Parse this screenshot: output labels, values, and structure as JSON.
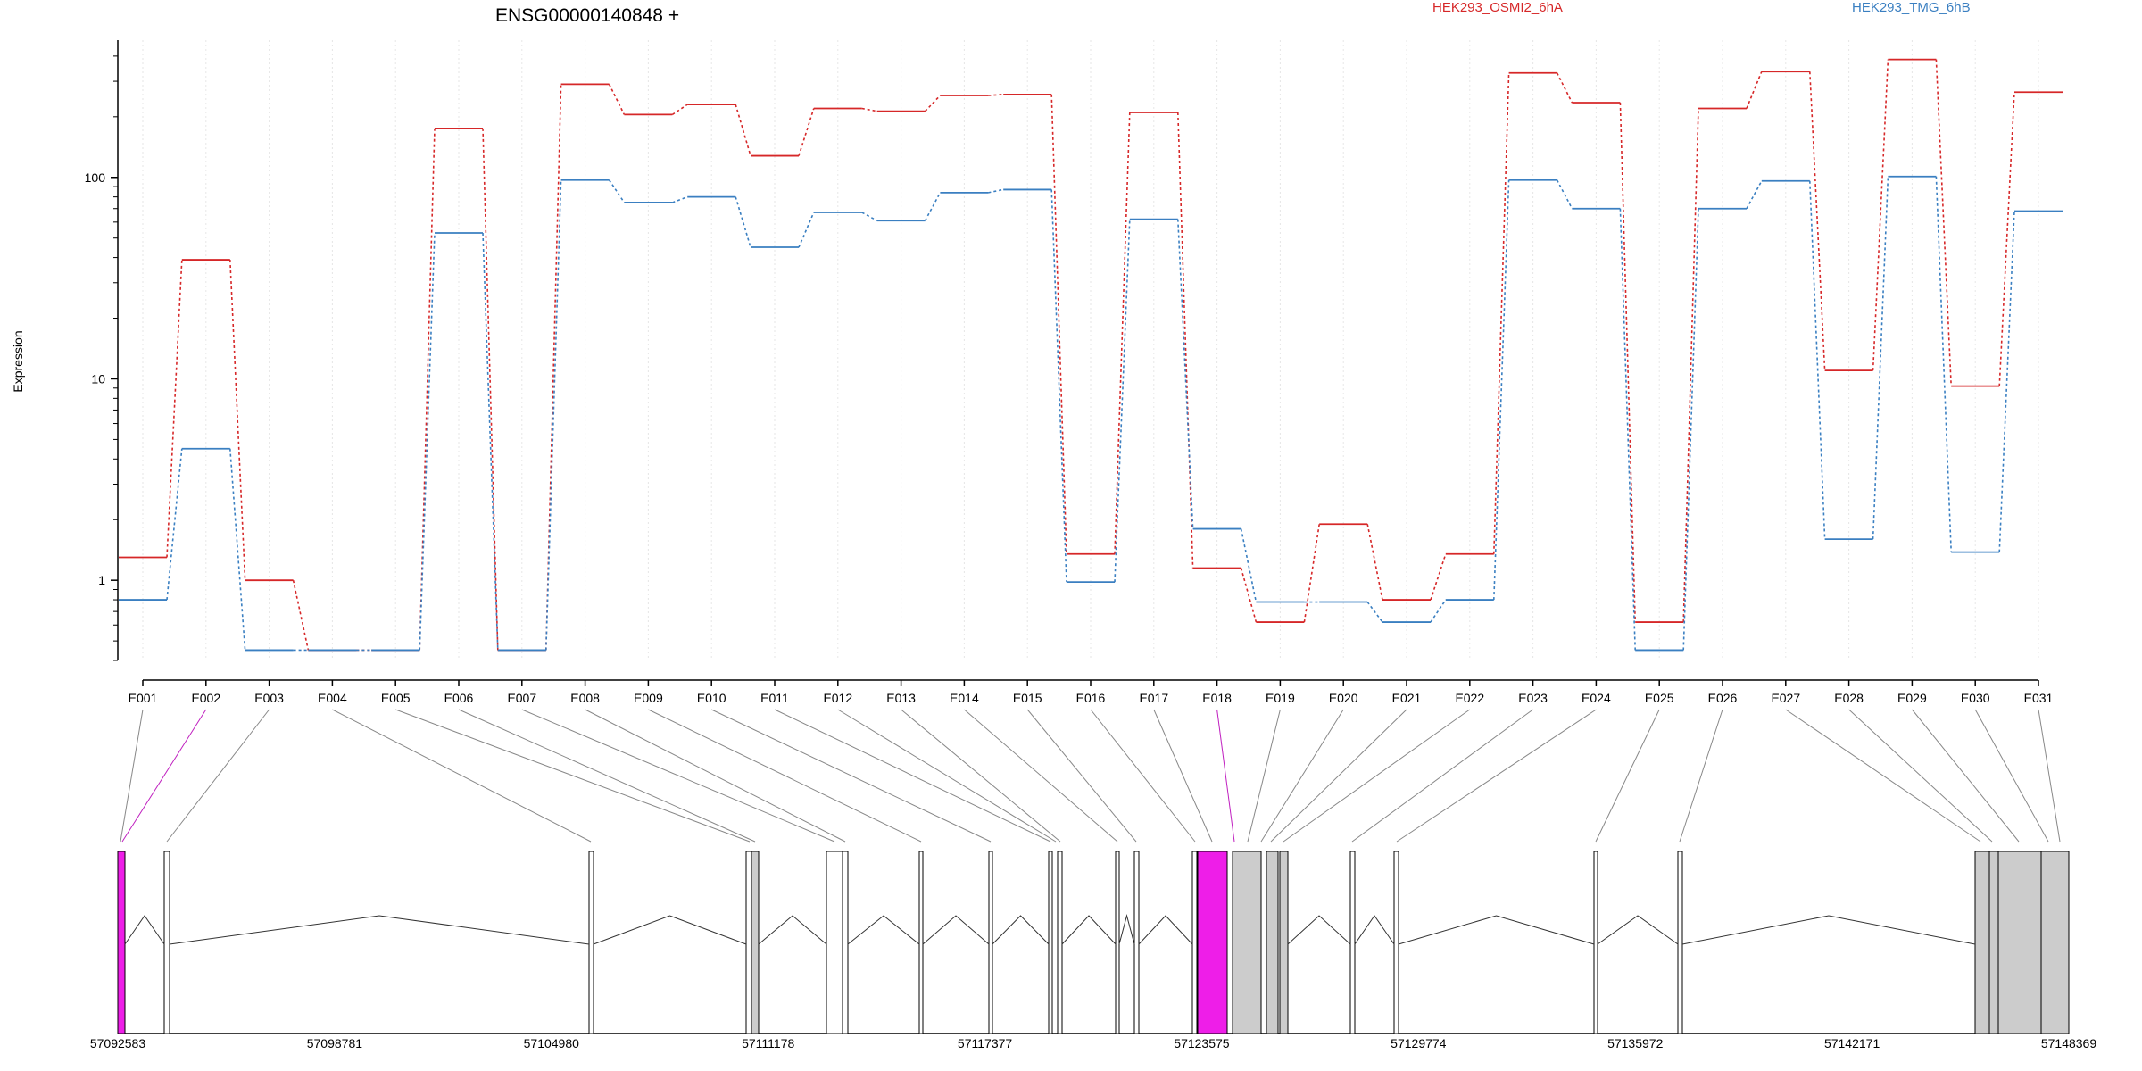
{
  "chart_data": [
    {
      "type": "line",
      "title": "ENSG00000140848 +",
      "ylabel": "Expression",
      "yscale": "log",
      "ylim": [
        0.4,
        480
      ],
      "yticks": [
        1,
        10,
        100
      ],
      "ytick_labels": [
        "1",
        "10",
        "100"
      ],
      "grid": "vertical dotted",
      "legend": "top-right",
      "categories": [
        "E001",
        "E002",
        "E003",
        "E004",
        "E005",
        "E006",
        "E007",
        "E008",
        "E009",
        "E010",
        "E011",
        "E012",
        "E013",
        "E014",
        "E015",
        "E016",
        "E017",
        "E018",
        "E019",
        "E020",
        "E021",
        "E022",
        "E023",
        "E024",
        "E025",
        "E026",
        "E027",
        "E028",
        "E029",
        "E030",
        "E031"
      ],
      "highlighted_categories": [
        "E002",
        "E018"
      ],
      "series": [
        {
          "name": "HEK293_OSMI2_6hA",
          "color": "#d62728",
          "values": [
            1.3,
            39,
            1.0,
            0.45,
            0.45,
            175,
            0.45,
            290,
            205,
            230,
            128,
            220,
            213,
            255,
            258,
            1.35,
            210,
            1.15,
            0.62,
            1.9,
            0.8,
            1.35,
            330,
            235,
            0.62,
            220,
            335,
            11,
            385,
            9.2,
            265
          ]
        },
        {
          "name": "HEK293_TMG_6hB",
          "color": "#3a7fc1",
          "values": [
            0.8,
            4.5,
            0.45,
            0.45,
            0.45,
            53,
            0.45,
            97,
            75,
            80,
            45,
            67,
            61,
            84,
            87,
            0.98,
            62,
            1.8,
            0.78,
            0.78,
            0.62,
            0.8,
            97,
            70,
            0.45,
            70,
            96,
            1.6,
            101,
            1.38,
            68
          ]
        }
      ]
    },
    {
      "type": "gene-model",
      "coordinate_labels": [
        "57092583",
        "57098781",
        "57104980",
        "57111178",
        "57117377",
        "57123575",
        "57129774",
        "57135972",
        "57142171",
        "57148369"
      ],
      "range": [
        57092583,
        57148369
      ],
      "exon_colors": {
        "normal": "#ffffff",
        "utr": "#cccccc",
        "highlight": "#ee1ee8"
      }
    }
  ]
}
